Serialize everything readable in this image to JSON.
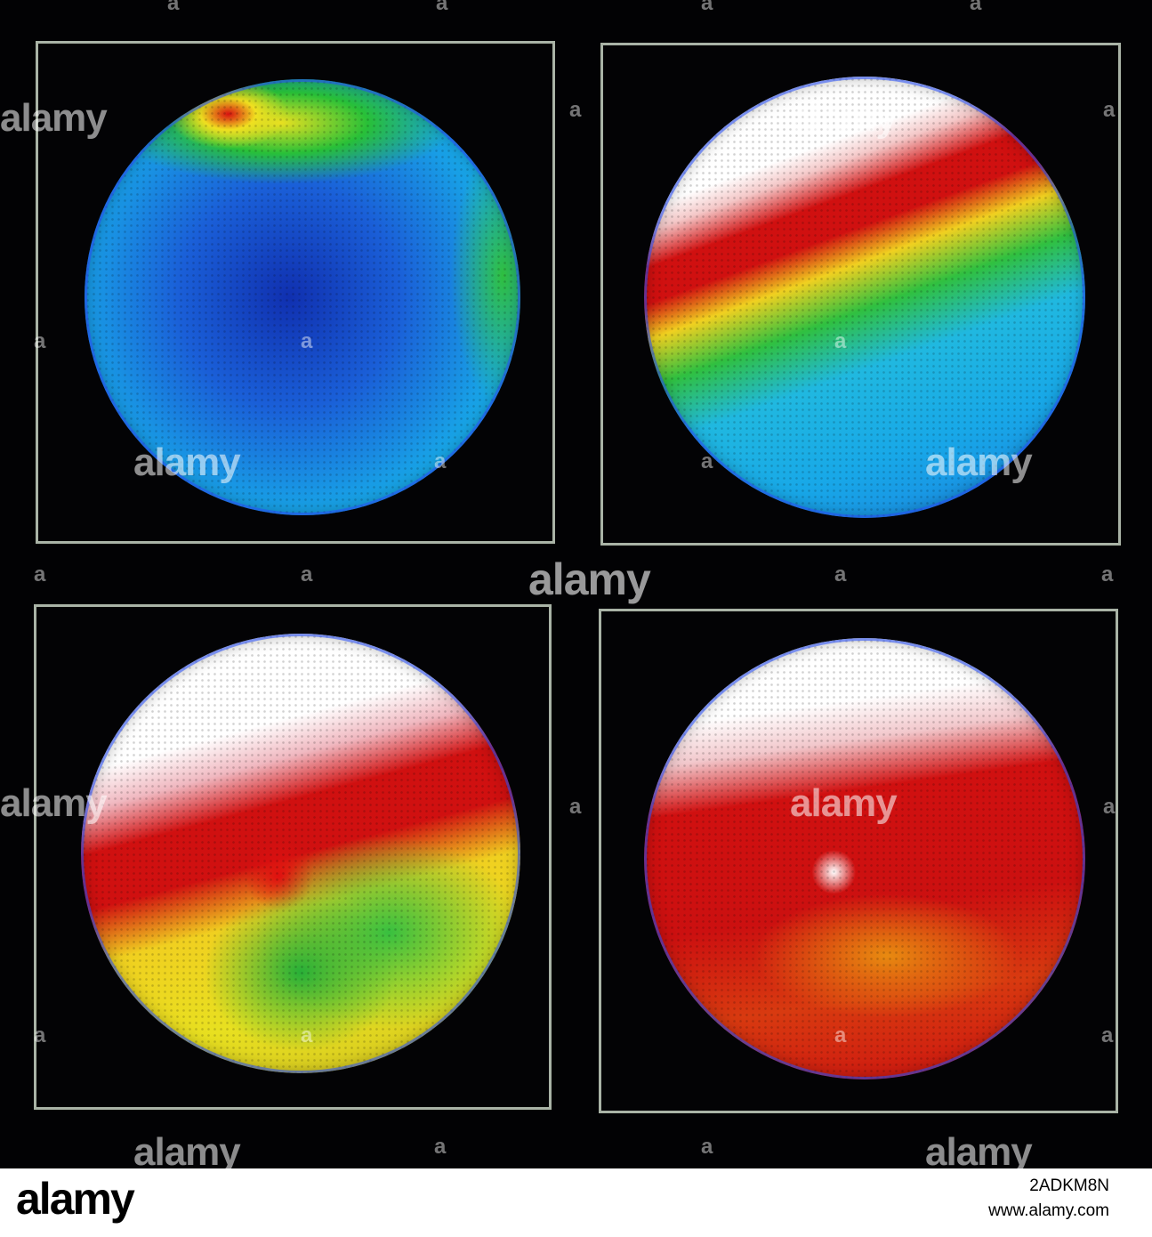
{
  "watermark": {
    "brand": "alamy",
    "mark": "a"
  },
  "footer": {
    "logo": "alamy",
    "image_id": "2ADKM8N",
    "site": "www.alamy.com"
  },
  "colors": {
    "background": "#000000",
    "frame": "#a9b3a6"
  }
}
